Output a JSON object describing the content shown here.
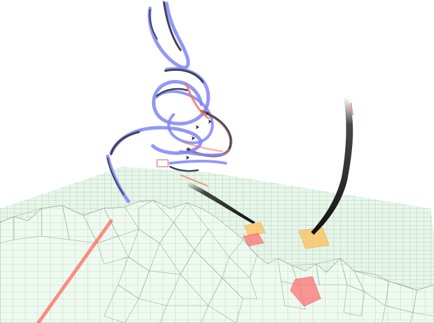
{
  "scene": {
    "background": "#ffffff",
    "terrain_fill": "#e6f7e9",
    "terrain_grid": "#9aa79c",
    "ridge_fill": "#f2fbf3",
    "ribbon_blue": "#7f86f5",
    "ribbon_dark": "#3d4258",
    "ribbon_brown": "#8a5a4a",
    "trail_red": "#ff6a5c",
    "zone_orange": "#ffbf5a",
    "zone_red": "#ff6b6b",
    "smoke": "#333333",
    "icons": [
      "aircraft-icon",
      "smoke-trail",
      "flight-ribbon",
      "target-zone"
    ]
  }
}
